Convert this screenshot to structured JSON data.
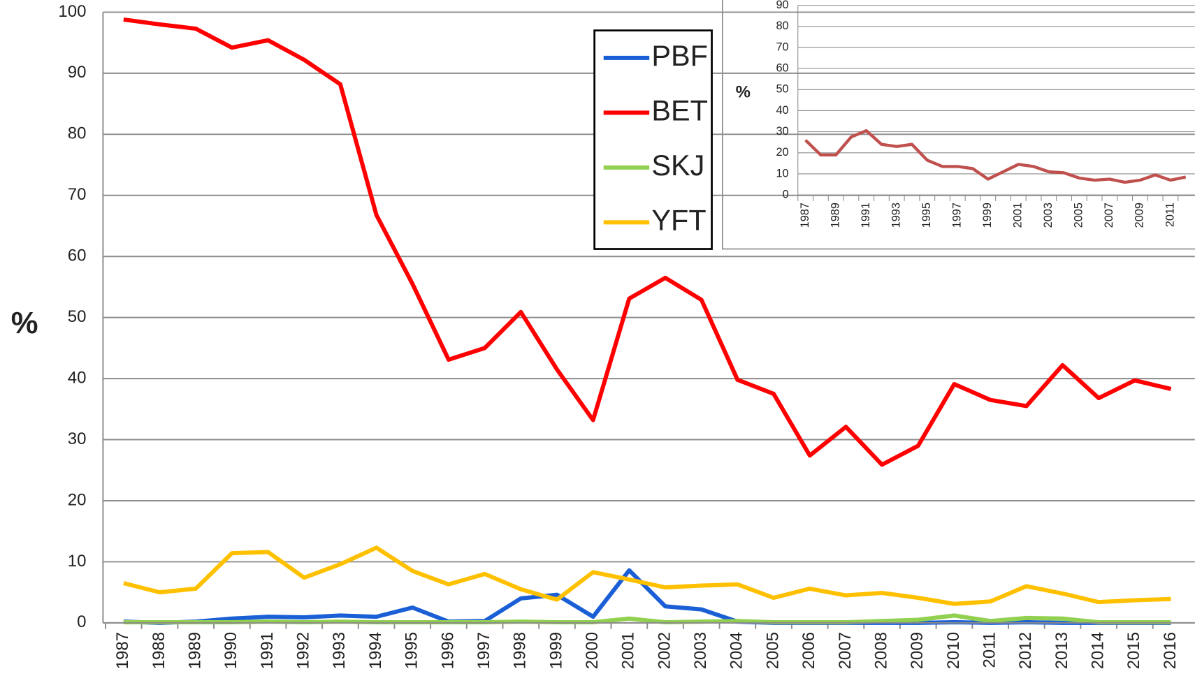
{
  "chart_data": [
    {
      "type": "line",
      "y_label": "%",
      "categories": [
        "1987",
        "1988",
        "1989",
        "1990",
        "1991",
        "1992",
        "1993",
        "1994",
        "1995",
        "1996",
        "1997",
        "1998",
        "1999",
        "2000",
        "2001",
        "2002",
        "2003",
        "2004",
        "2005",
        "2006",
        "2007",
        "2008",
        "2009",
        "2010",
        "2011",
        "2012",
        "2013",
        "2014",
        "2015",
        "2016"
      ],
      "series": [
        {
          "name": "PBF",
          "color": "#1a5fd6",
          "values": [
            0.2,
            0,
            0.2,
            0.7,
            1,
            0.9,
            1.2,
            1,
            2.5,
            0.2,
            0.3,
            4,
            4.6,
            1,
            8.6,
            2.7,
            2.2,
            0.2,
            0,
            0,
            0,
            0,
            0,
            0.1,
            0,
            0.1,
            0,
            0,
            0,
            0
          ]
        },
        {
          "name": "BET",
          "color": "#ff0000",
          "values": [
            98.8,
            98,
            97.3,
            94.2,
            95.4,
            92.2,
            88.2,
            66.8,
            55.5,
            43.1,
            45,
            50.9,
            41.5,
            33.2,
            53.1,
            56.5,
            52.9,
            39.8,
            37.5,
            27.4,
            32.1,
            25.9,
            29,
            39.1,
            36.5,
            35.5,
            42.2,
            36.8,
            39.7,
            38.3
          ]
        },
        {
          "name": "SKJ",
          "color": "#92d050",
          "values": [
            0.1,
            0.1,
            0.1,
            0.1,
            0.2,
            0.1,
            0.2,
            0.1,
            0.1,
            0.1,
            0.1,
            0.2,
            0.1,
            0.1,
            0.7,
            0.1,
            0.2,
            0.3,
            0.1,
            0.1,
            0.1,
            0.3,
            0.5,
            1.2,
            0.3,
            0.8,
            0.7,
            0.1,
            0.1,
            0.1
          ]
        },
        {
          "name": "YFT",
          "color": "#ffc000",
          "values": [
            6.5,
            5,
            5.6,
            11.4,
            11.6,
            7.4,
            9.6,
            12.3,
            8.5,
            6.3,
            8,
            5.5,
            3.8,
            8.3,
            7.1,
            5.8,
            6.1,
            6.3,
            4.1,
            5.6,
            4.5,
            4.9,
            4.1,
            3.1,
            3.5,
            6,
            4.8,
            3.4,
            3.7,
            3.9
          ]
        }
      ],
      "ylim": [
        0,
        100
      ],
      "yticks": [
        0,
        10,
        20,
        30,
        40,
        50,
        60,
        70,
        80,
        90,
        100
      ],
      "grid": true,
      "legend": "top"
    },
    {
      "type": "line",
      "y_label": "%",
      "categories": [
        "1987",
        null,
        "1989",
        null,
        "1991",
        null,
        "1993",
        null,
        "1995",
        null,
        "1997",
        null,
        "1999",
        null,
        "2001",
        null,
        "2003",
        null,
        "2005",
        null,
        "2007",
        null,
        "2009",
        null,
        "2011",
        null
      ],
      "values": [
        26,
        19,
        19,
        27.5,
        30.5,
        24,
        23,
        24,
        16.5,
        13.5,
        13.5,
        12.5,
        7.5,
        11,
        14.5,
        13.5,
        11,
        10.5,
        8,
        7,
        7.5,
        6,
        7,
        9.5,
        7,
        8.5
      ],
      "color": "#c0504d",
      "ylim": [
        0,
        90
      ],
      "yticks": [
        0,
        10,
        20,
        30,
        40,
        50,
        60,
        70,
        80,
        90
      ],
      "grid": true
    }
  ]
}
